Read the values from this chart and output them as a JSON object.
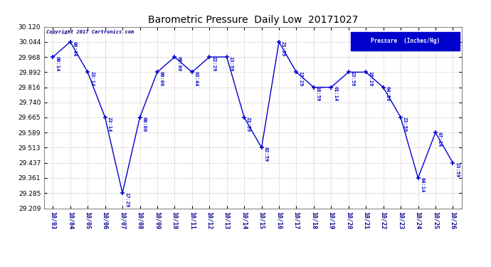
{
  "title": "Barometric Pressure  Daily Low  20171027",
  "copyright": "Copyright 2017 Cartronics.com",
  "line_color": "#0000cd",
  "marker_color": "#0000cd",
  "background_color": "#ffffff",
  "grid_color": "#c8c8c8",
  "ylim": [
    29.209,
    30.12
  ],
  "yticks": [
    29.209,
    29.285,
    29.361,
    29.437,
    29.513,
    29.589,
    29.665,
    29.74,
    29.816,
    29.892,
    29.968,
    30.044,
    30.12
  ],
  "dates": [
    "10/03",
    "10/04",
    "10/05",
    "10/06",
    "10/07",
    "10/08",
    "10/09",
    "10/10",
    "10/11",
    "10/12",
    "10/13",
    "10/14",
    "10/15",
    "10/16",
    "10/17",
    "10/18",
    "10/19",
    "10/20",
    "10/21",
    "10/22",
    "10/23",
    "10/24",
    "10/25",
    "10/26"
  ],
  "values": [
    29.968,
    30.044,
    29.892,
    29.665,
    29.285,
    29.665,
    29.892,
    29.968,
    29.892,
    29.968,
    29.968,
    29.665,
    29.513,
    30.044,
    29.892,
    29.816,
    29.816,
    29.892,
    29.892,
    29.816,
    29.665,
    29.361,
    29.589,
    29.437
  ],
  "annotations": [
    "00:14",
    "00:44",
    "23:14",
    "23:14",
    "17:29",
    "00:00",
    "00:00",
    "00:00",
    "03:44",
    "22:29",
    "13:59",
    "23:59",
    "02:59",
    "23:59",
    "17:29",
    "16:59",
    "01:14",
    "23:59",
    "16:29",
    "04:59",
    "23:59",
    "04:14",
    "07:14",
    "23:59"
  ],
  "legend_label": "Pressure  (Inches/Hg)",
  "legend_bg": "#0000cd",
  "legend_text_color": "#ffffff",
  "figwidth": 6.9,
  "figheight": 3.75,
  "dpi": 100
}
